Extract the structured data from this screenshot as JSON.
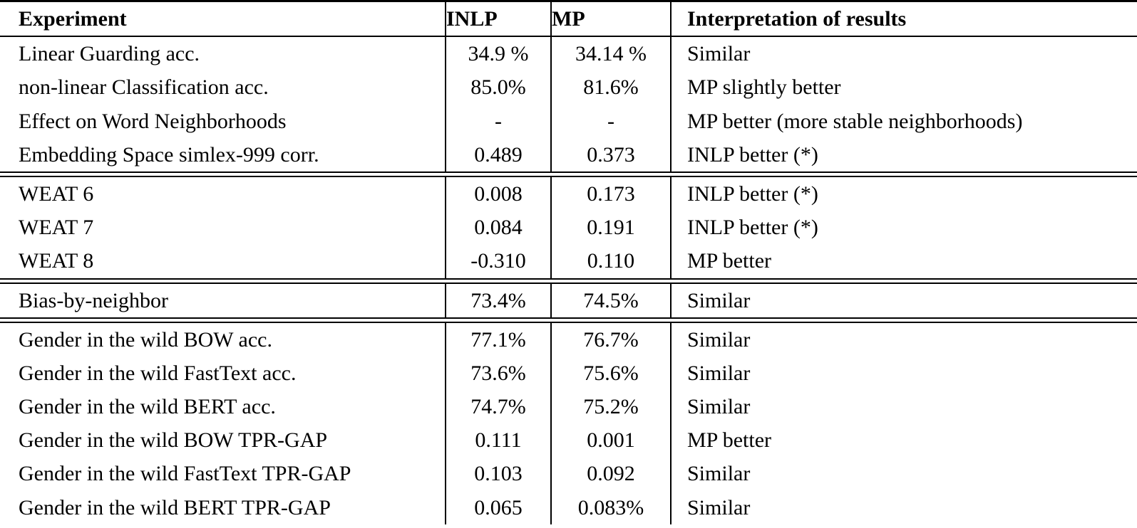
{
  "table": {
    "header": {
      "experiment": "Experiment",
      "inlp": "INLP",
      "mp": "MP",
      "interpretation": "Interpretation of results"
    },
    "sections": [
      {
        "rows": [
          {
            "experiment": "Linear Guarding acc.",
            "inlp": "34.9 %",
            "mp": "34.14 %",
            "interpretation": "Similar"
          },
          {
            "experiment": "non-linear Classification acc.",
            "inlp": "85.0%",
            "mp": "81.6%",
            "interpretation": "MP slightly better"
          },
          {
            "experiment": "Effect on Word Neighborhoods",
            "inlp": "-",
            "mp": "-",
            "interpretation": "MP better (more stable neighborhoods)"
          },
          {
            "experiment": "Embedding Space simlex-999 corr.",
            "inlp": "0.489",
            "mp": "0.373",
            "interpretation": "INLP better (*)"
          }
        ]
      },
      {
        "rows": [
          {
            "experiment": "WEAT 6",
            "inlp": "0.008",
            "mp": "0.173",
            "interpretation": "INLP better (*)"
          },
          {
            "experiment": "WEAT 7",
            "inlp": "0.084",
            "mp": "0.191",
            "interpretation": "INLP better (*)"
          },
          {
            "experiment": "WEAT 8",
            "inlp": "-0.310",
            "mp": "0.110",
            "interpretation": "MP better"
          }
        ]
      },
      {
        "rows": [
          {
            "experiment": "Bias-by-neighbor",
            "inlp": "73.4%",
            "mp": "74.5%",
            "interpretation": "Similar"
          }
        ]
      },
      {
        "rows": [
          {
            "experiment": "Gender in the wild BOW acc.",
            "inlp": "77.1%",
            "mp": "76.7%",
            "interpretation": "Similar"
          },
          {
            "experiment": "Gender in the wild FastText acc.",
            "inlp": "73.6%",
            "mp": "75.6%",
            "interpretation": "Similar"
          },
          {
            "experiment": "Gender in the wild BERT acc.",
            "inlp": "74.7%",
            "mp": "75.2%",
            "interpretation": "Similar"
          },
          {
            "experiment": "Gender in the wild BOW TPR-GAP",
            "inlp": "0.111",
            "mp": "0.001",
            "interpretation": "MP better"
          },
          {
            "experiment": "Gender in the wild FastText TPR-GAP",
            "inlp": "0.103",
            "mp": "0.092",
            "interpretation": "Similar"
          },
          {
            "experiment": "Gender in the wild BERT TPR-GAP",
            "inlp": "0.065",
            "mp": "0.083%",
            "interpretation": "Similar"
          }
        ]
      }
    ]
  }
}
